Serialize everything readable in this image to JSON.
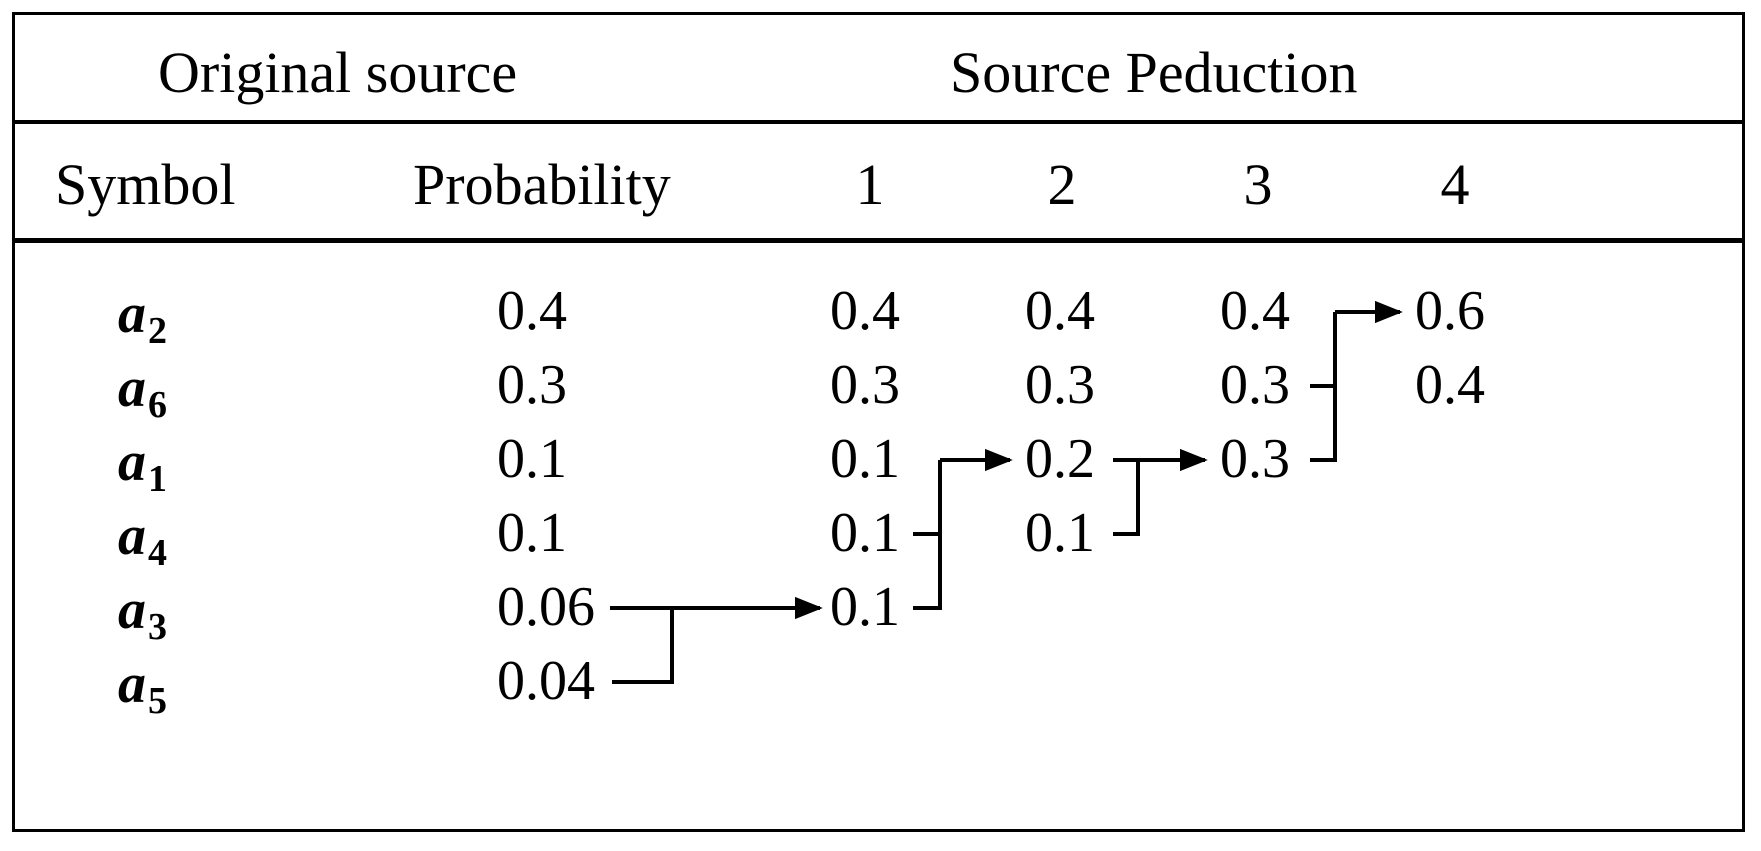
{
  "header": {
    "original_source": "Original source",
    "source_reduction": "Source Peduction"
  },
  "columns": {
    "symbol": "Symbol",
    "probability": "Probability",
    "reductions": [
      "1",
      "2",
      "3",
      "4"
    ]
  },
  "symbols": [
    {
      "letter": "a",
      "sub": "2"
    },
    {
      "letter": "a",
      "sub": "6"
    },
    {
      "letter": "a",
      "sub": "1"
    },
    {
      "letter": "a",
      "sub": "4"
    },
    {
      "letter": "a",
      "sub": "3"
    },
    {
      "letter": "a",
      "sub": "5"
    }
  ],
  "probability": [
    "0.4",
    "0.3",
    "0.1",
    "0.1",
    "0.06",
    "0.04"
  ],
  "reduction1": [
    "0.4",
    "0.3",
    "0.1",
    "0.1",
    "0.1"
  ],
  "reduction2": [
    "0.4",
    "0.3",
    "0.2",
    "0.1"
  ],
  "reduction3": [
    "0.4",
    "0.3",
    "0.3"
  ],
  "reduction4": [
    "0.6",
    "0.4"
  ]
}
